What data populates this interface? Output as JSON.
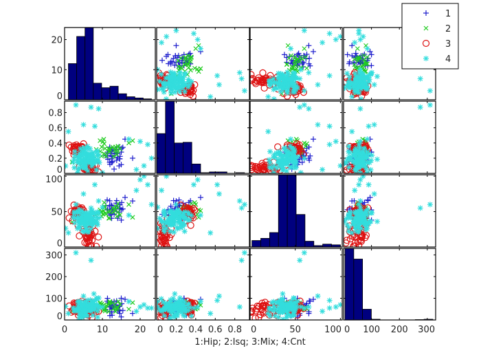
{
  "chart_data": {
    "type": "scatter",
    "subtype": "scatter-matrix",
    "xlabel": "1:Hip; 2:Isq; 3:Mix; 4:Cnt",
    "variables": [
      {
        "range": [
          0,
          24
        ],
        "ticks": [
          0,
          10,
          20
        ],
        "tick_labels": [
          "0",
          "10",
          "20"
        ]
      },
      {
        "range": [
          0,
          0.95
        ],
        "ticks": [
          0,
          0.2,
          0.4,
          0.6,
          0.8
        ],
        "tick_labels": [
          "0",
          "0.2",
          "0.4",
          "0.6",
          "0.8"
        ]
      },
      {
        "range": [
          0,
          102
        ],
        "ticks": [
          0,
          50,
          100
        ],
        "tick_labels": [
          "0",
          "50",
          "100"
        ]
      },
      {
        "range": [
          0,
          330
        ],
        "ticks": [
          0,
          100,
          200,
          300
        ],
        "tick_labels": [
          "0",
          "100",
          "200",
          "300"
        ]
      }
    ],
    "histograms": [
      {
        "range": [
          1,
          23
        ],
        "counts": [
          12,
          21,
          24,
          5.5,
          4,
          4.5,
          2,
          1,
          0.6,
          0.3
        ]
      },
      {
        "range": [
          0,
          0.9
        ],
        "counts": [
          55,
          100,
          42,
          43,
          13,
          1,
          2,
          2,
          0,
          1
        ]
      },
      {
        "range": [
          2,
          100
        ],
        "counts": [
          9,
          12,
          20,
          100,
          100,
          45,
          8,
          2,
          4,
          3
        ]
      },
      {
        "range": [
          5,
          320
        ],
        "counts": [
          100,
          85,
          15,
          1,
          0,
          0,
          0,
          0,
          0.5,
          1
        ]
      }
    ],
    "legend": {
      "position": "top-right",
      "entries": [
        "1",
        "2",
        "3",
        "4"
      ]
    },
    "groups": [
      {
        "name": "1",
        "marker": "+",
        "color": "#1a1acc",
        "clusters": [
          {
            "n": 30,
            "mean": [
              13.5,
              0.24,
              55,
              55
            ],
            "sd": [
              1.3,
              0.07,
              7,
              22
            ]
          }
        ],
        "points": [
          [
            16,
            0.45,
            70,
            95
          ],
          [
            18,
            0.2,
            65,
            30
          ],
          [
            12,
            0.12,
            45,
            20
          ],
          [
            15,
            0.28,
            38,
            100
          ]
        ]
      },
      {
        "name": "2",
        "marker": "x",
        "color": "#22cc22",
        "clusters": [
          {
            "n": 28,
            "mean": [
              11.5,
              0.3,
              50,
              60
            ],
            "sd": [
              1.8,
              0.06,
              6,
              15
            ]
          }
        ],
        "points": [
          [
            18,
            0.43,
            42,
            80
          ],
          [
            2,
            0.15,
            35,
            40
          ],
          [
            17,
            0.4,
            60,
            50
          ]
        ]
      },
      {
        "name": "3",
        "marker": "o",
        "color": "#dd1111",
        "clusters": [
          {
            "n": 35,
            "mean": [
              3.5,
              0.33,
              48,
              60
            ],
            "sd": [
              1.0,
              0.04,
              5,
              18
            ]
          },
          {
            "n": 35,
            "mean": [
              6.5,
              0.08,
              15,
              50
            ],
            "sd": [
              0.9,
              0.03,
              9,
              18
            ]
          }
        ],
        "points": []
      },
      {
        "name": "4",
        "marker": "*",
        "color": "#33dddd",
        "clusters": [
          {
            "n": 90,
            "mean": [
              5.5,
              0.17,
              40,
              55
            ],
            "sd": [
              2.0,
              0.08,
              9,
              20
            ]
          }
        ],
        "points": [
          [
            20,
            0.42,
            95,
            60
          ],
          [
            22,
            0.38,
            88,
            55
          ],
          [
            21,
            0.1,
            100,
            70
          ],
          [
            19,
            0.05,
            80,
            40
          ],
          [
            3,
            0.9,
            60,
            310
          ],
          [
            7,
            0.87,
            55,
            275
          ],
          [
            5,
            0.64,
            75,
            110
          ],
          [
            8,
            0.62,
            88,
            90
          ],
          [
            9,
            0.85,
            65,
            60
          ],
          [
            17,
            0.45,
            45,
            85
          ],
          [
            23,
            0.2,
            60,
            55
          ],
          [
            1,
            0.55,
            20,
            30
          ]
        ]
      }
    ]
  }
}
